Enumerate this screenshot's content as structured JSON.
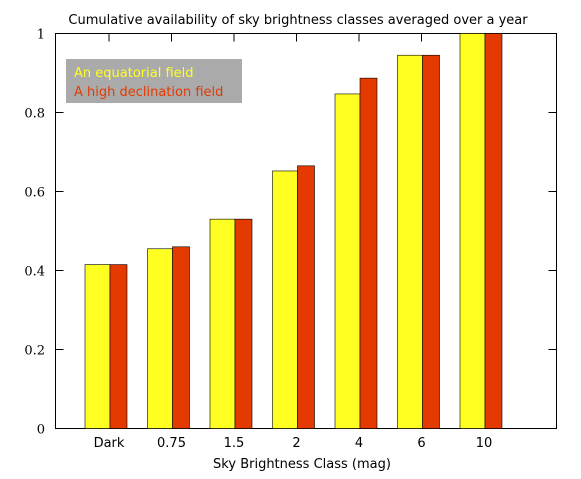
{
  "chart_data": {
    "type": "bar",
    "title": "Cumulative availability of sky brightness classes averaged over a year",
    "xlabel": "Sky Brightness Class (mag)",
    "ylabel": "",
    "categories": [
      "Dark",
      "0.75",
      "1.5",
      "2",
      "4",
      "6",
      "10"
    ],
    "series": [
      {
        "name": "An equatorial field",
        "color": "#ffff22",
        "values": [
          0.415,
          0.455,
          0.53,
          0.652,
          0.847,
          0.945,
          1.0
        ]
      },
      {
        "name": "A high declination field",
        "color": "#e43a00",
        "values": [
          0.415,
          0.46,
          0.53,
          0.665,
          0.887,
          0.945,
          1.0
        ]
      }
    ],
    "ylim": [
      0,
      1
    ],
    "yticks": [
      "0",
      "0.2",
      "0.4",
      "0.6",
      "0.8",
      "1"
    ],
    "legend_position": "top-left",
    "legend_background": "#aaaaaa",
    "grid": false
  }
}
